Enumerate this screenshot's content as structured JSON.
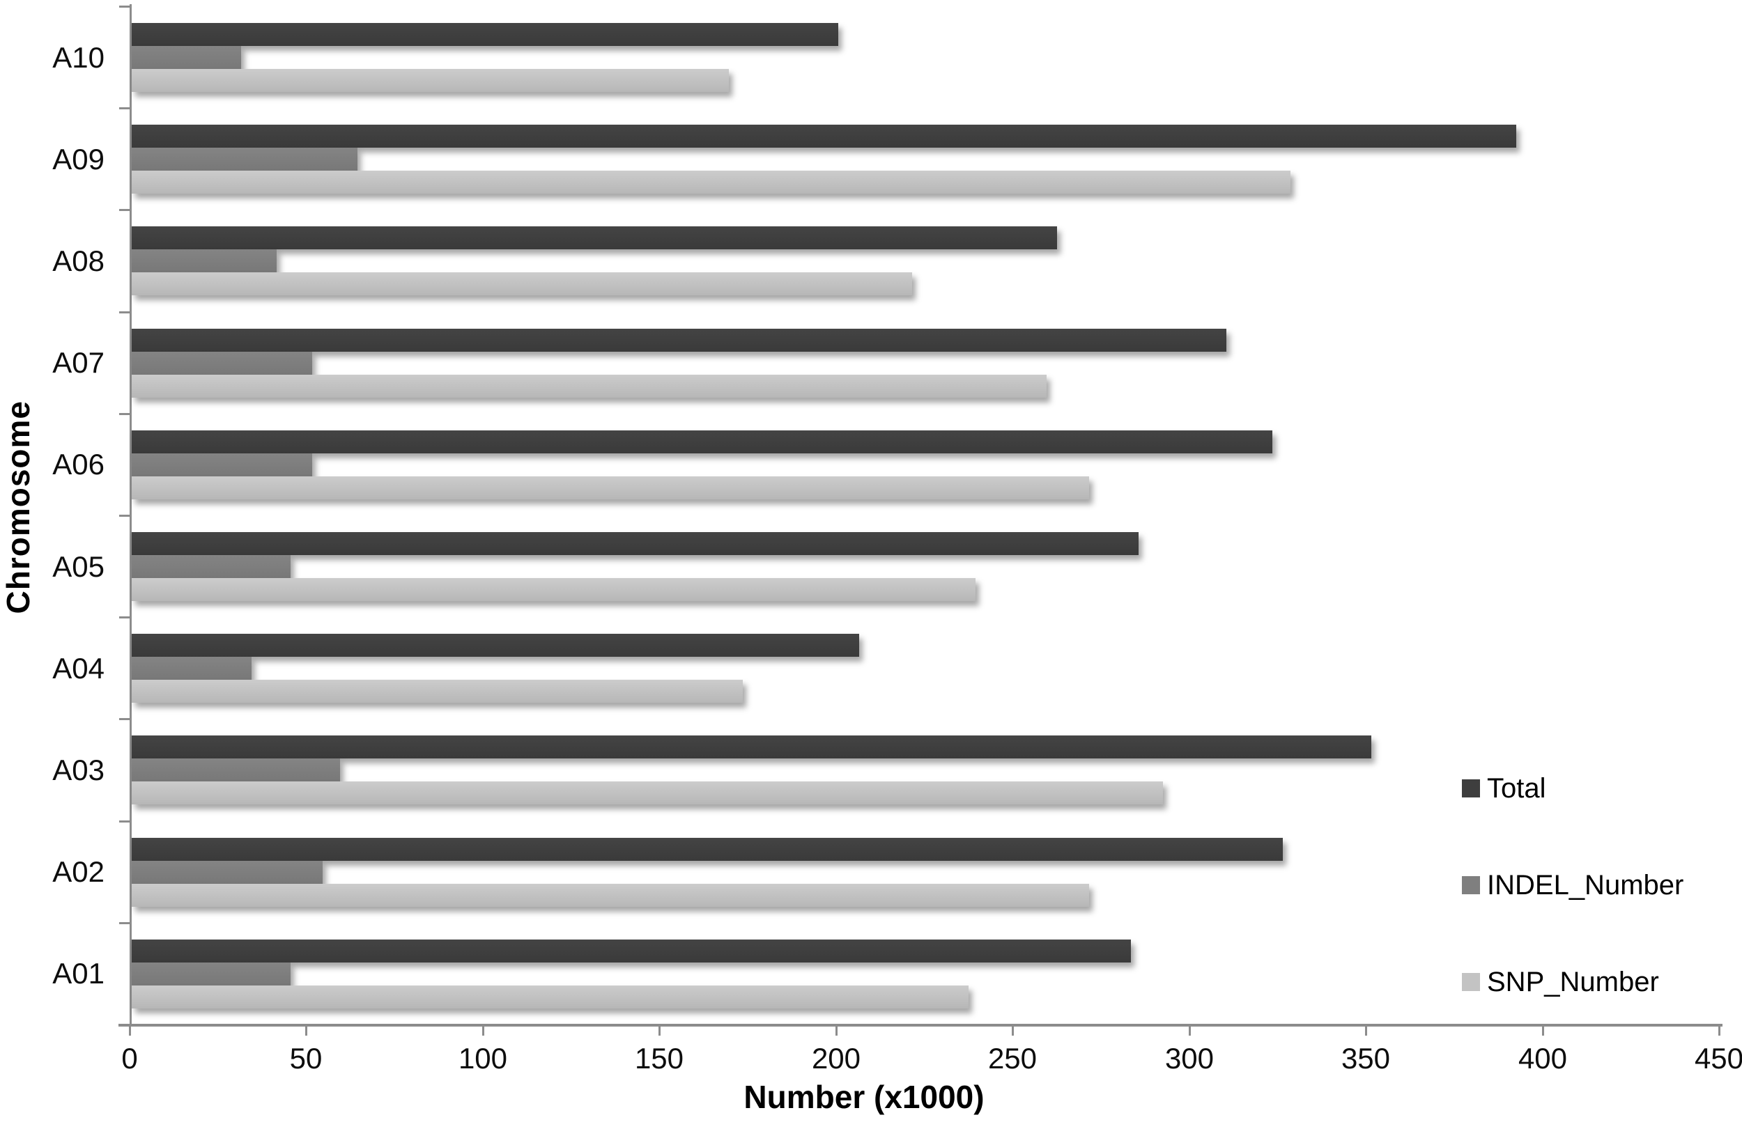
{
  "chart_data": {
    "type": "bar",
    "orientation": "horizontal",
    "xlabel": "Number (x1000)",
    "ylabel": "Chromosome",
    "xlim": [
      0,
      450
    ],
    "xticks": [
      0,
      50,
      100,
      150,
      200,
      250,
      300,
      350,
      400,
      450
    ],
    "grid": false,
    "legend_position": "right-middle",
    "categories": [
      "A10",
      "A09",
      "A08",
      "A07",
      "A06",
      "A05",
      "A04",
      "A03",
      "A02",
      "A01"
    ],
    "series": [
      {
        "name": "Total",
        "color": "#3e3e3e",
        "values": [
          200,
          392,
          262,
          310,
          323,
          285,
          206,
          351,
          326,
          283
        ]
      },
      {
        "name": "INDEL_Number",
        "color": "#7f7f7f",
        "values": [
          31,
          64,
          41,
          51,
          51,
          45,
          34,
          59,
          54,
          45
        ]
      },
      {
        "name": "SNP_Number",
        "color": "#c3c3c3",
        "values": [
          169,
          328,
          221,
          259,
          271,
          239,
          173,
          292,
          271,
          237
        ]
      }
    ]
  }
}
